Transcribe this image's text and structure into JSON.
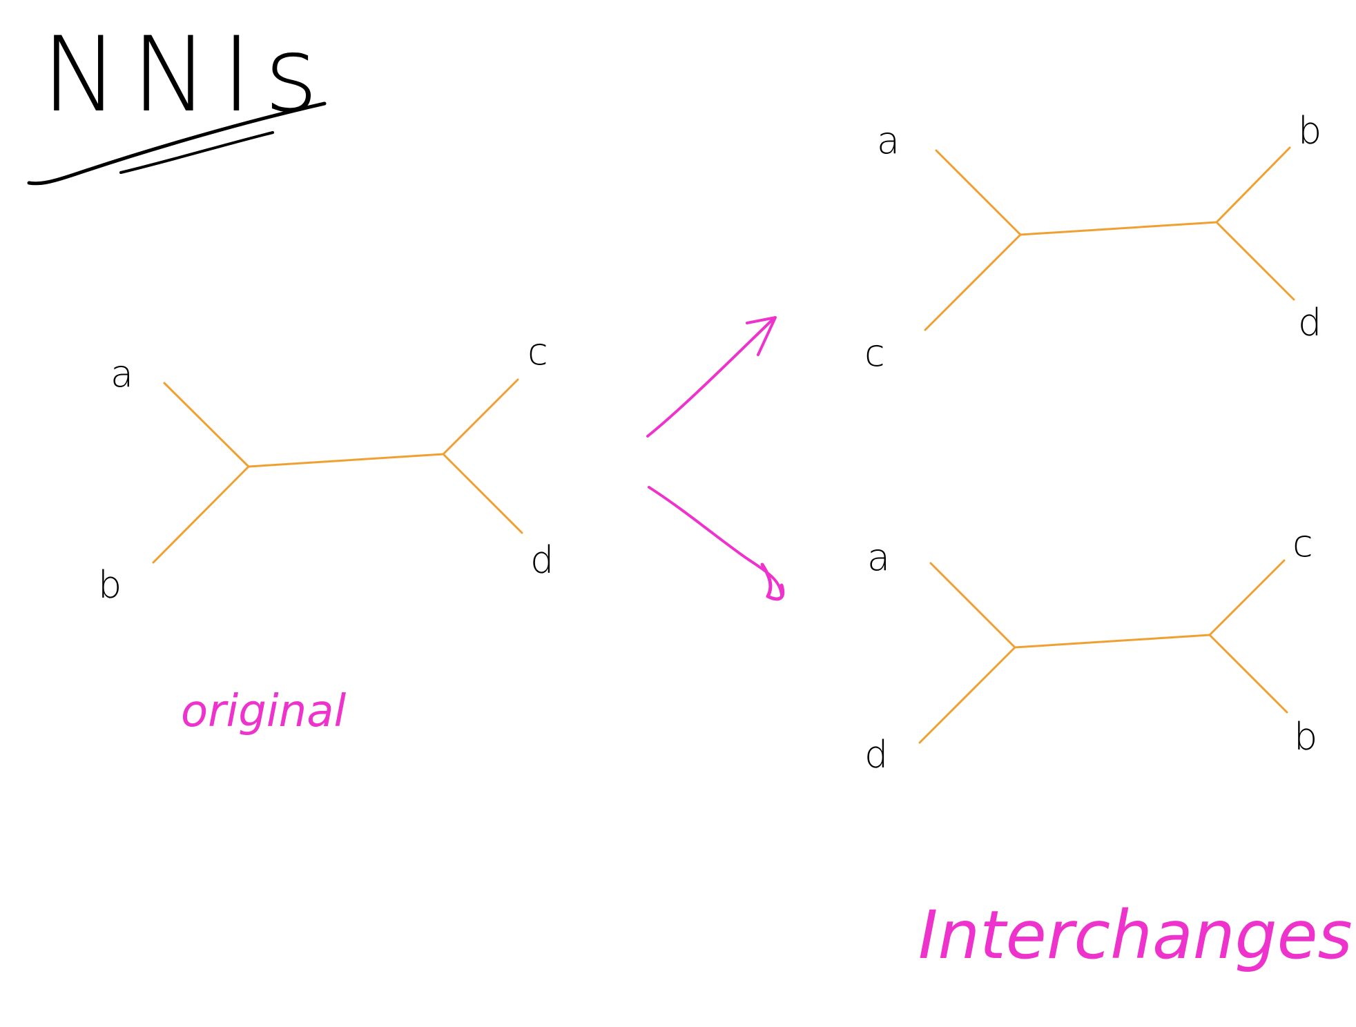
{
  "title": "NNIs",
  "colors": {
    "ink": "#000000",
    "branch": "#f0a030",
    "accent": "#ee33cc",
    "background": "#ffffff"
  },
  "trees": [
    {
      "id": "original",
      "left_leaves": [
        "a",
        "b"
      ],
      "right_leaves": [
        "c",
        "d"
      ],
      "caption": "original"
    },
    {
      "id": "interchange-1",
      "left_leaves": [
        "a",
        "c"
      ],
      "right_leaves": [
        "b",
        "d"
      ]
    },
    {
      "id": "interchange-2",
      "left_leaves": [
        "a",
        "d"
      ],
      "right_leaves": [
        "c",
        "b"
      ]
    }
  ],
  "interchanges_caption": "Interchanges"
}
